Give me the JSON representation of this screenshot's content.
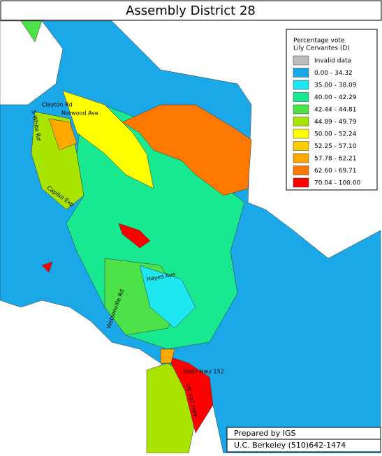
{
  "header": {
    "title": "Assembly District 28"
  },
  "legend": {
    "title_lines": [
      "Percentage vote",
      "Lily Cervantes (D)"
    ],
    "items": [
      {
        "label": "Invalid data",
        "color": "#bdbdbd"
      },
      {
        "label": "0.00 -  34.32",
        "color": "#1aa8e8"
      },
      {
        "label": "35.00 -  38.09",
        "color": "#1ee6f0"
      },
      {
        "label": "40.00 -  42.29",
        "color": "#18e890"
      },
      {
        "label": "42.44 -  44.81",
        "color": "#4ee24a"
      },
      {
        "label": "44.89 -  49.79",
        "color": "#a8e400"
      },
      {
        "label": "50.00 -  52.24",
        "color": "#ffff00"
      },
      {
        "label": "52.25 -  57.10",
        "color": "#ffcc00"
      },
      {
        "label": "57.78 -  62.21",
        "color": "#ffa800"
      },
      {
        "label": "62.60 -  69.71",
        "color": "#ff7800"
      },
      {
        "label": "70.04 - 100.00",
        "color": "#ff0000"
      }
    ]
  },
  "streets": [
    "Clayton Rd",
    "Norwood Ave",
    "S White Rd",
    "Capitol Exp",
    "Hayes Ave",
    "Watsonville Rd",
    "State Hwy 152",
    "US 101 Hwy"
  ],
  "credits": [
    "Prepared by IGS",
    "U.C. Berkeley (510)642-1474"
  ]
}
